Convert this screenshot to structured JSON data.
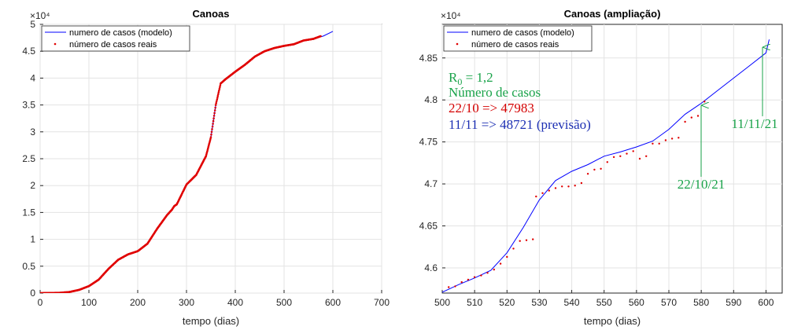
{
  "chart_data": [
    {
      "type": "line",
      "title": "Canoas",
      "xlabel": "tempo (dias)",
      "ylabel": "",
      "y_exponent": "×10⁴",
      "xlim": [
        0,
        700
      ],
      "ylim": [
        0,
        5
      ],
      "xticks": [
        "0",
        "100",
        "200",
        "300",
        "400",
        "500",
        "600",
        "700"
      ],
      "yticks": [
        "0",
        "0.5",
        "1",
        "1.5",
        "2",
        "2.5",
        "3",
        "3.5",
        "4",
        "4.5",
        "5"
      ],
      "grid": true,
      "legend": [
        "numero de casos (modelo)",
        "número de casos reais"
      ],
      "legend_position": "top-left",
      "series": [
        {
          "name": "numero de casos (modelo)",
          "style": "line",
          "color": "#0000ff",
          "x": [
            0,
            40,
            60,
            80,
            100,
            120,
            140,
            160,
            180,
            200,
            220,
            240,
            260,
            280,
            300,
            320,
            340,
            350,
            360,
            370,
            380,
            400,
            420,
            440,
            460,
            480,
            500,
            520,
            540,
            560,
            580,
            600
          ],
          "y": [
            0,
            0.005,
            0.02,
            0.06,
            0.13,
            0.25,
            0.45,
            0.62,
            0.72,
            0.78,
            0.92,
            1.2,
            1.45,
            1.65,
            2.02,
            2.2,
            2.55,
            2.9,
            3.5,
            3.9,
            3.98,
            4.12,
            4.25,
            4.4,
            4.5,
            4.56,
            4.6,
            4.63,
            4.7,
            4.73,
            4.78,
            4.87
          ]
        },
        {
          "name": "número de casos reais",
          "style": "dots",
          "color": "#e00000",
          "x": [
            0,
            40,
            60,
            80,
            100,
            120,
            140,
            160,
            180,
            200,
            220,
            240,
            260,
            270,
            275,
            280,
            300,
            320,
            340,
            350,
            360,
            370,
            380,
            400,
            420,
            440,
            460,
            480,
            500,
            520,
            540,
            560,
            575
          ],
          "y": [
            0,
            0.005,
            0.02,
            0.06,
            0.13,
            0.25,
            0.45,
            0.62,
            0.72,
            0.78,
            0.92,
            1.2,
            1.45,
            1.55,
            1.62,
            1.65,
            2.02,
            2.2,
            2.55,
            2.9,
            3.5,
            3.9,
            3.98,
            4.12,
            4.25,
            4.4,
            4.5,
            4.56,
            4.6,
            4.63,
            4.7,
            4.73,
            4.78
          ]
        }
      ]
    },
    {
      "type": "line",
      "title": "Canoas (ampliação)",
      "xlabel": "tempo (dias)",
      "ylabel": "",
      "y_exponent": "×10⁴",
      "xlim": [
        500,
        605
      ],
      "ylim": [
        4.57,
        4.89
      ],
      "xticks": [
        "500",
        "510",
        "520",
        "530",
        "540",
        "550",
        "560",
        "570",
        "580",
        "590",
        "600"
      ],
      "yticks": [
        "4.6",
        "4.65",
        "4.7",
        "4.75",
        "4.8",
        "4.85"
      ],
      "grid": true,
      "legend": [
        "numero de casos (modelo)",
        "número de casos reais"
      ],
      "legend_position": "top-left",
      "annotations": {
        "r0_label": "R",
        "r0_sub": "0",
        "r0_value": " = 1,2",
        "line2": "Número de casos",
        "line3": "22/10 => 47983",
        "line4": "11/11 => 48721 (previsão)",
        "arrow1_label": "22/10/21",
        "arrow2_label": "11/11/21"
      },
      "series": [
        {
          "name": "numero de casos (modelo)",
          "style": "line",
          "color": "#0000ff",
          "x": [
            500,
            505,
            510,
            515,
            520,
            525,
            530,
            535,
            540,
            545,
            550,
            555,
            560,
            565,
            570,
            575,
            580,
            585,
            590,
            595,
            600,
            601
          ],
          "y": [
            4.571,
            4.58,
            4.588,
            4.597,
            4.618,
            4.648,
            4.681,
            4.704,
            4.715,
            4.723,
            4.733,
            4.738,
            4.744,
            4.751,
            4.765,
            4.783,
            4.796,
            4.811,
            4.826,
            4.841,
            4.856,
            4.872
          ]
        },
        {
          "name": "número de casos reais",
          "style": "dots",
          "color": "#e00000",
          "x": [
            502,
            504,
            506,
            508,
            510,
            512,
            514,
            516,
            518,
            520,
            522,
            524,
            526,
            528,
            529,
            531,
            533,
            535,
            537,
            539,
            541,
            543,
            545,
            547,
            549,
            551,
            553,
            555,
            557,
            559,
            561,
            563,
            565,
            567,
            569,
            571,
            573,
            575,
            577,
            579,
            581
          ],
          "y": [
            4.577,
            4.578,
            4.583,
            4.586,
            4.589,
            4.591,
            4.594,
            4.598,
            4.605,
            4.613,
            4.623,
            4.632,
            4.633,
            4.634,
            4.685,
            4.689,
            4.692,
            4.695,
            4.697,
            4.697,
            4.698,
            4.701,
            4.712,
            4.717,
            4.718,
            4.726,
            4.732,
            4.733,
            4.736,
            4.739,
            4.73,
            4.733,
            4.748,
            4.748,
            4.752,
            4.754,
            4.755,
            4.774,
            4.779,
            4.781,
            4.798
          ]
        }
      ]
    }
  ]
}
